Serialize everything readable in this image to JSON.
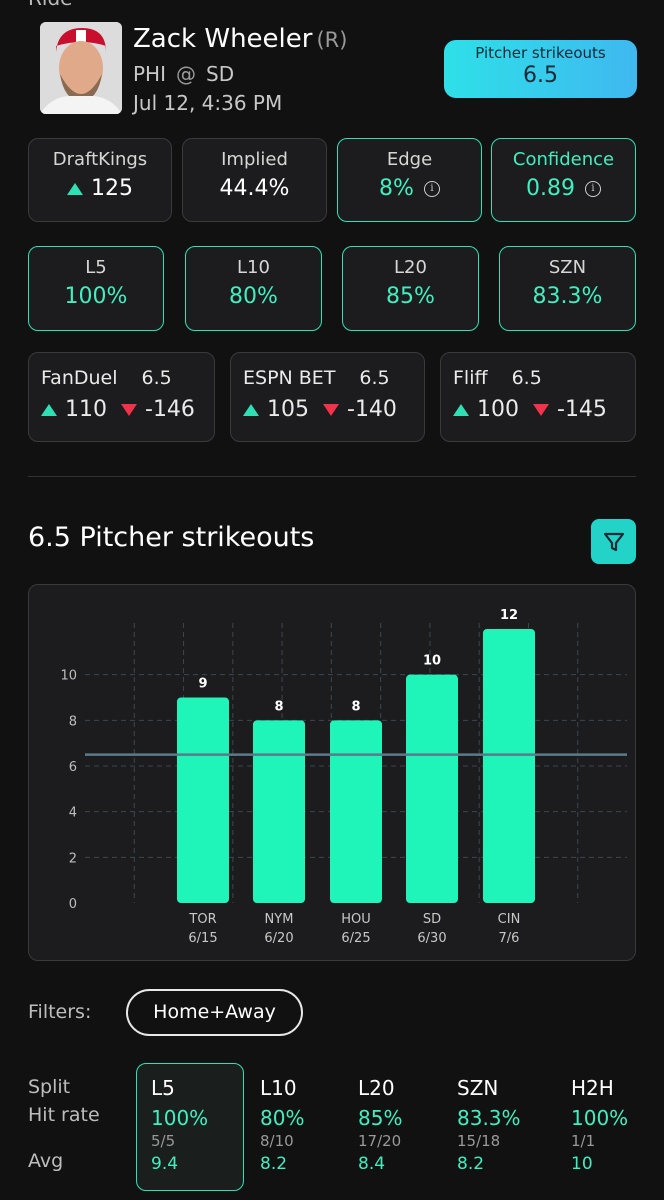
{
  "header": {
    "cut_text": "Ride",
    "player_name": "Zack Wheeler",
    "hand": "(R)",
    "team": "PHI",
    "at": "@",
    "opponent": "SD",
    "game_time": "Jul 12, 4:36 PM",
    "prop_label": "Pitcher strikeouts",
    "prop_line": "6.5"
  },
  "stats": {
    "draftkings": {
      "label": "DraftKings",
      "value": "125"
    },
    "implied": {
      "label": "Implied",
      "value": "44.4%"
    },
    "edge": {
      "label": "Edge",
      "value": "8%"
    },
    "confidence": {
      "label": "Confidence",
      "value": "0.89"
    }
  },
  "hit_rates": [
    {
      "label": "L5",
      "value": "100%"
    },
    {
      "label": "L10",
      "value": "80%"
    },
    {
      "label": "L20",
      "value": "85%"
    },
    {
      "label": "SZN",
      "value": "83.3%"
    }
  ],
  "books": [
    {
      "name": "FanDuel",
      "line": "6.5",
      "over": "110",
      "under": "-146"
    },
    {
      "name": "ESPN BET",
      "line": "6.5",
      "over": "105",
      "under": "-140"
    },
    {
      "name": "Fliff",
      "line": "6.5",
      "over": "100",
      "under": "-145"
    }
  ],
  "section_title": "6.5 Pitcher strikeouts",
  "chart_data": {
    "type": "bar",
    "categories": [
      "TOR",
      "NYM",
      "HOU",
      "SD",
      "CIN"
    ],
    "dates": [
      "6/15",
      "6/20",
      "6/25",
      "6/30",
      "7/6"
    ],
    "values": [
      9,
      8,
      8,
      10,
      12
    ],
    "line": 6.5,
    "ylim": [
      0,
      12
    ],
    "yticks": [
      0,
      2,
      4,
      6,
      8,
      10
    ],
    "grid": true,
    "colors": {
      "bar": "#1ff5b8",
      "line": "#5b7a8a",
      "grid": "#3d4650"
    }
  },
  "filters": {
    "label": "Filters:",
    "selected": "Home+Away"
  },
  "splits": {
    "row_labels": [
      "Split",
      "Hit rate",
      "Avg"
    ],
    "columns": [
      {
        "split": "L5",
        "rate": "100%",
        "count": "5/5",
        "avg": "9.4"
      },
      {
        "split": "L10",
        "rate": "80%",
        "count": "8/10",
        "avg": "8.2"
      },
      {
        "split": "L20",
        "rate": "85%",
        "count": "17/20",
        "avg": "8.4"
      },
      {
        "split": "SZN",
        "rate": "83.3%",
        "count": "15/18",
        "avg": "8.2"
      },
      {
        "split": "H2H",
        "rate": "100%",
        "count": "1/1",
        "avg": "10"
      }
    ]
  },
  "colors": {
    "accent": "#2fe0b4",
    "down": "#f0324b",
    "badge": "#2ee0e8"
  }
}
